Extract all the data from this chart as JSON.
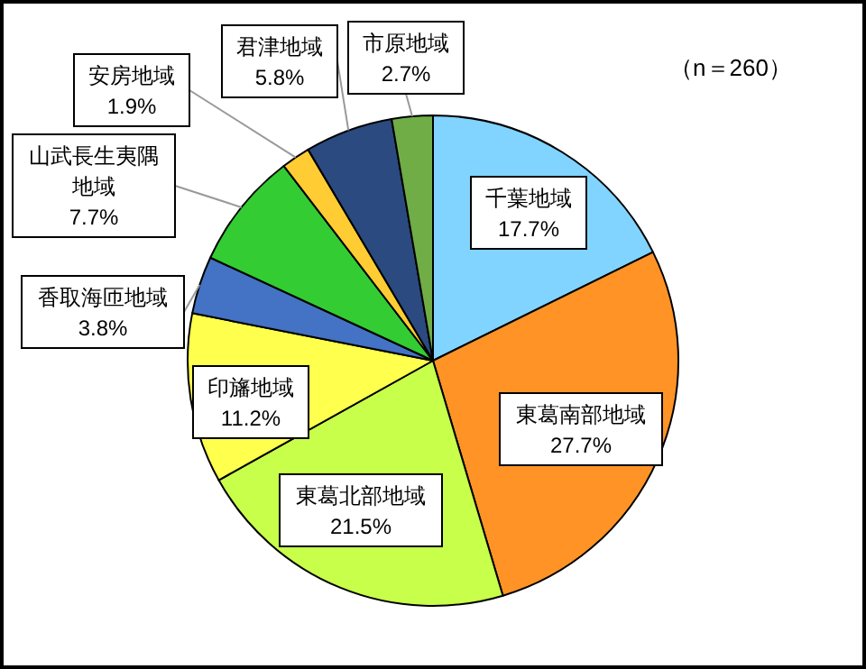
{
  "chart_data": {
    "type": "pie",
    "categories": [
      "千葉地域",
      "東葛南部地域",
      "東葛北部地域",
      "印旛地域",
      "香取海匝地域",
      "山武長生夷隅地域",
      "安房地域",
      "君津地域",
      "市原地域"
    ],
    "values": [
      17.7,
      27.7,
      21.5,
      11.2,
      3.8,
      7.7,
      1.9,
      5.8,
      2.7
    ],
    "colors": [
      "#80d4ff",
      "#ff9326",
      "#c8ff4a",
      "#ffff4d",
      "#4472c4",
      "#33cc33",
      "#ffcc33",
      "#2a4a80",
      "#70ad47"
    ],
    "value_labels": [
      "17.7%",
      "27.7%",
      "21.5%",
      "11.2%",
      "3.8%",
      "7.7%",
      "1.9%",
      "5.8%",
      "2.7%"
    ],
    "annotations": [
      "（n＝260）"
    ]
  }
}
